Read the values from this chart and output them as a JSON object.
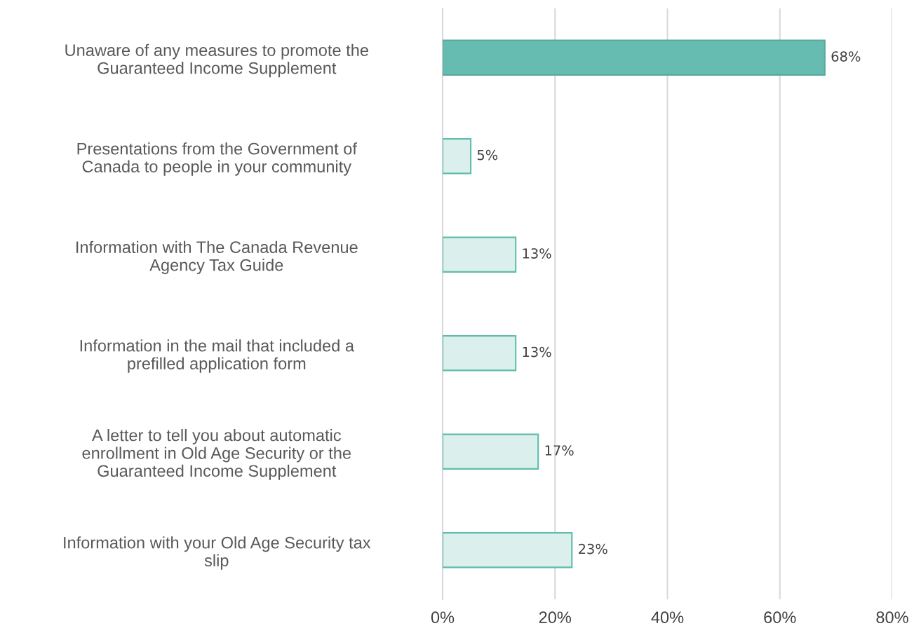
{
  "chart_data": {
    "type": "bar",
    "orientation": "horizontal",
    "categories": [
      "Unaware of any measures to promote the\nGuaranteed Income Supplement",
      "Presentations from the Government of\nCanada to people in your community",
      "Information with The Canada Revenue\nAgency Tax Guide",
      "Information in the mail that included a\nprefilled application form",
      "A letter to tell you about automatic\nenrollment in Old Age Security or the\nGuaranteed Income Supplement",
      "Information with your Old Age Security tax\nslip"
    ],
    "values": [
      68,
      5,
      13,
      13,
      17,
      23
    ],
    "value_labels": [
      "68%",
      "5%",
      "13%",
      "13%",
      "17%",
      "23%"
    ],
    "colors": [
      "#66bcb0",
      "#dbefec",
      "#dbefec",
      "#dbefec",
      "#dbefec",
      "#dbefec"
    ],
    "xlim": [
      0,
      80
    ],
    "xticks": [
      {
        "value": 0,
        "label": "0%"
      },
      {
        "value": 20,
        "label": "20%"
      },
      {
        "value": 40,
        "label": "40%"
      },
      {
        "value": 60,
        "label": "60%"
      },
      {
        "value": 80,
        "label": "80%"
      }
    ],
    "grid": "x"
  }
}
